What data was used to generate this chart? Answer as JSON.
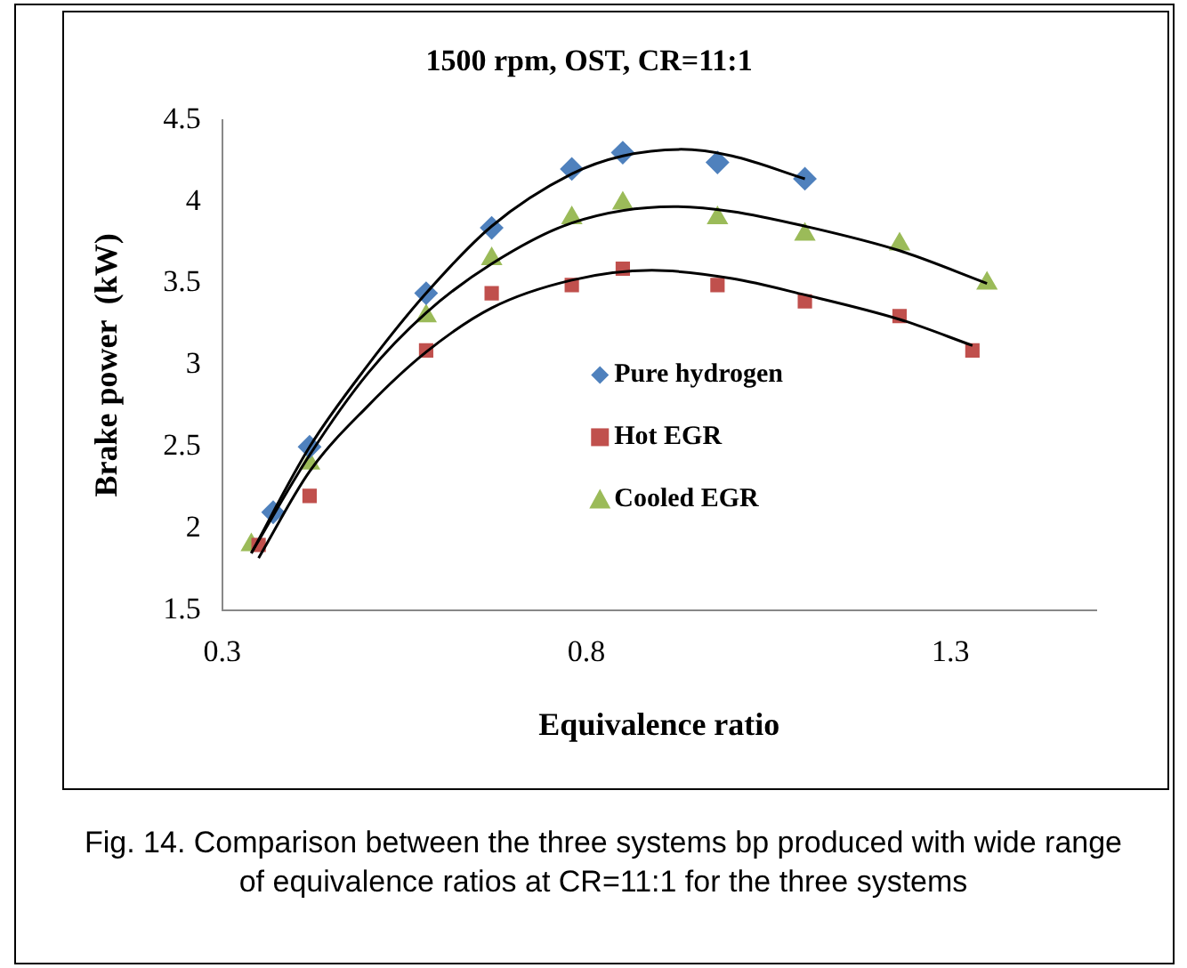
{
  "chart_data": {
    "type": "scatter",
    "title": "1500 rpm, OST, CR=11:1",
    "xlabel": "Equivalence ratio",
    "ylabel": "Brake power  (kW)",
    "annotations": [
      "Fig. 14. Comparison between the three systems bp produced with wide range of equivalence ratios at CR=11:1 for the three systems"
    ],
    "series": [
      {
        "name": "Pure hydrogen",
        "color": "#4f81bd",
        "marker": "diamond",
        "x": [
          0.37,
          0.42,
          0.58,
          0.67,
          0.78,
          0.85,
          0.98,
          1.1
        ],
        "values": [
          2.1,
          2.5,
          3.44,
          3.84,
          4.2,
          4.3,
          4.24,
          4.14
        ]
      },
      {
        "name": "Hot EGR",
        "color": "#c0504d",
        "marker": "square",
        "x": [
          0.35,
          0.42,
          0.58,
          0.67,
          0.78,
          0.85,
          0.98,
          1.1,
          1.23,
          1.33
        ],
        "values": [
          1.9,
          2.2,
          3.09,
          3.44,
          3.49,
          3.59,
          3.49,
          3.39,
          3.3,
          3.09
        ]
      },
      {
        "name": "Cooled EGR",
        "color": "#9bbb59",
        "marker": "triangle",
        "x": [
          0.34,
          0.42,
          0.58,
          0.67,
          0.78,
          0.85,
          0.98,
          1.1,
          1.23,
          1.35
        ],
        "values": [
          1.9,
          2.4,
          3.3,
          3.65,
          3.9,
          3.99,
          3.9,
          3.8,
          3.74,
          3.5
        ]
      },
      {
        "type": "line",
        "color": "#000000",
        "marker": "none",
        "x": [
          0.34,
          0.42,
          0.5,
          0.58,
          0.67,
          0.78,
          0.85,
          0.93,
          1.0,
          1.1
        ],
        "values": [
          1.85,
          2.5,
          3.0,
          3.44,
          3.85,
          4.17,
          4.28,
          4.32,
          4.28,
          4.14
        ]
      },
      {
        "type": "line",
        "color": "#000000",
        "marker": "none",
        "x": [
          0.35,
          0.42,
          0.5,
          0.58,
          0.67,
          0.78,
          0.89,
          1.0,
          1.1,
          1.23,
          1.33
        ],
        "values": [
          1.82,
          2.35,
          2.75,
          3.08,
          3.35,
          3.52,
          3.58,
          3.53,
          3.43,
          3.28,
          3.12
        ]
      },
      {
        "type": "line",
        "color": "#000000",
        "marker": "none",
        "x": [
          0.34,
          0.42,
          0.5,
          0.58,
          0.67,
          0.78,
          0.92,
          1.0,
          1.1,
          1.23,
          1.35
        ],
        "values": [
          1.85,
          2.45,
          2.95,
          3.32,
          3.62,
          3.87,
          3.97,
          3.94,
          3.85,
          3.7,
          3.5
        ]
      }
    ],
    "xlim": [
      0.3,
      1.5
    ],
    "xticks": [
      0.3,
      0.8,
      1.3
    ],
    "ylim": [
      1.5,
      4.5
    ],
    "yticks": [
      1.5,
      2,
      2.5,
      3,
      3.5,
      4,
      4.5
    ],
    "grid": false,
    "legend": "bottom right"
  }
}
